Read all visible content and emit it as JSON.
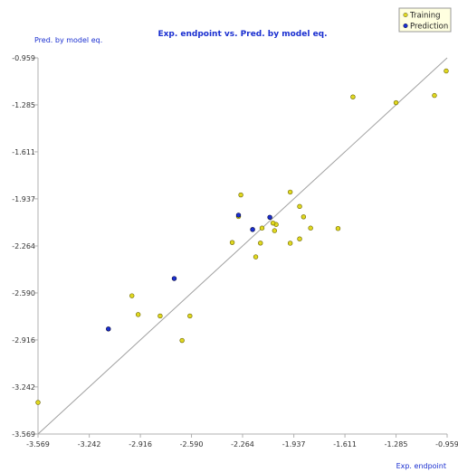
{
  "chart_data": {
    "type": "scatter",
    "title": "Exp. endpoint vs. Pred. by model eq.",
    "xlabel": "Exp. endpoint",
    "ylabel": "Pred. by model eq.",
    "xlim": [
      -3.569,
      -0.959
    ],
    "ylim": [
      -3.569,
      -0.959
    ],
    "x_ticks": [
      "-3.569",
      "-3.242",
      "-2.916",
      "-2.590",
      "-2.264",
      "-1.937",
      "-1.611",
      "-1.285",
      "-0.959"
    ],
    "y_ticks": [
      "-0.959",
      "-1.285",
      "-1.611",
      "-1.937",
      "-2.264",
      "-2.590",
      "-2.916",
      "-3.242",
      "-3.569"
    ],
    "grid": false,
    "legend_position": "top-right",
    "reference_line": {
      "from": [
        -3.569,
        -3.569
      ],
      "to": [
        -0.959,
        -0.959
      ],
      "color": "#a0a0a0"
    },
    "series": [
      {
        "name": "Training",
        "color": "#e0d820",
        "points": [
          [
            -0.965,
            -1.05
          ],
          [
            -1.04,
            -1.22
          ],
          [
            -1.285,
            -1.27
          ],
          [
            -1.56,
            -1.23
          ],
          [
            -1.83,
            -2.14
          ],
          [
            -1.875,
            -2.062
          ],
          [
            -1.9,
            -1.99
          ],
          [
            -1.655,
            -2.143
          ],
          [
            -1.96,
            -1.89
          ],
          [
            -1.96,
            -2.245
          ],
          [
            -1.9,
            -2.215
          ],
          [
            -2.05,
            -2.115
          ],
          [
            -2.07,
            -2.105
          ],
          [
            -2.06,
            -2.158
          ],
          [
            -2.14,
            -2.14
          ],
          [
            -2.15,
            -2.244
          ],
          [
            -2.18,
            -2.34
          ],
          [
            -2.29,
            -2.06
          ],
          [
            -2.275,
            -1.91
          ],
          [
            -2.33,
            -2.24
          ],
          [
            -2.6,
            -2.75
          ],
          [
            -2.65,
            -2.92
          ],
          [
            -2.79,
            -2.75
          ],
          [
            -2.93,
            -2.74
          ],
          [
            -2.97,
            -2.61
          ],
          [
            -3.569,
            -3.35
          ]
        ]
      },
      {
        "name": "Prediction",
        "color": "#1a2fd0",
        "points": [
          [
            -2.29,
            -2.05
          ],
          [
            -2.2,
            -2.15
          ],
          [
            -2.7,
            -2.49
          ],
          [
            -3.12,
            -2.84
          ],
          [
            -2.09,
            -2.065
          ]
        ]
      }
    ]
  }
}
